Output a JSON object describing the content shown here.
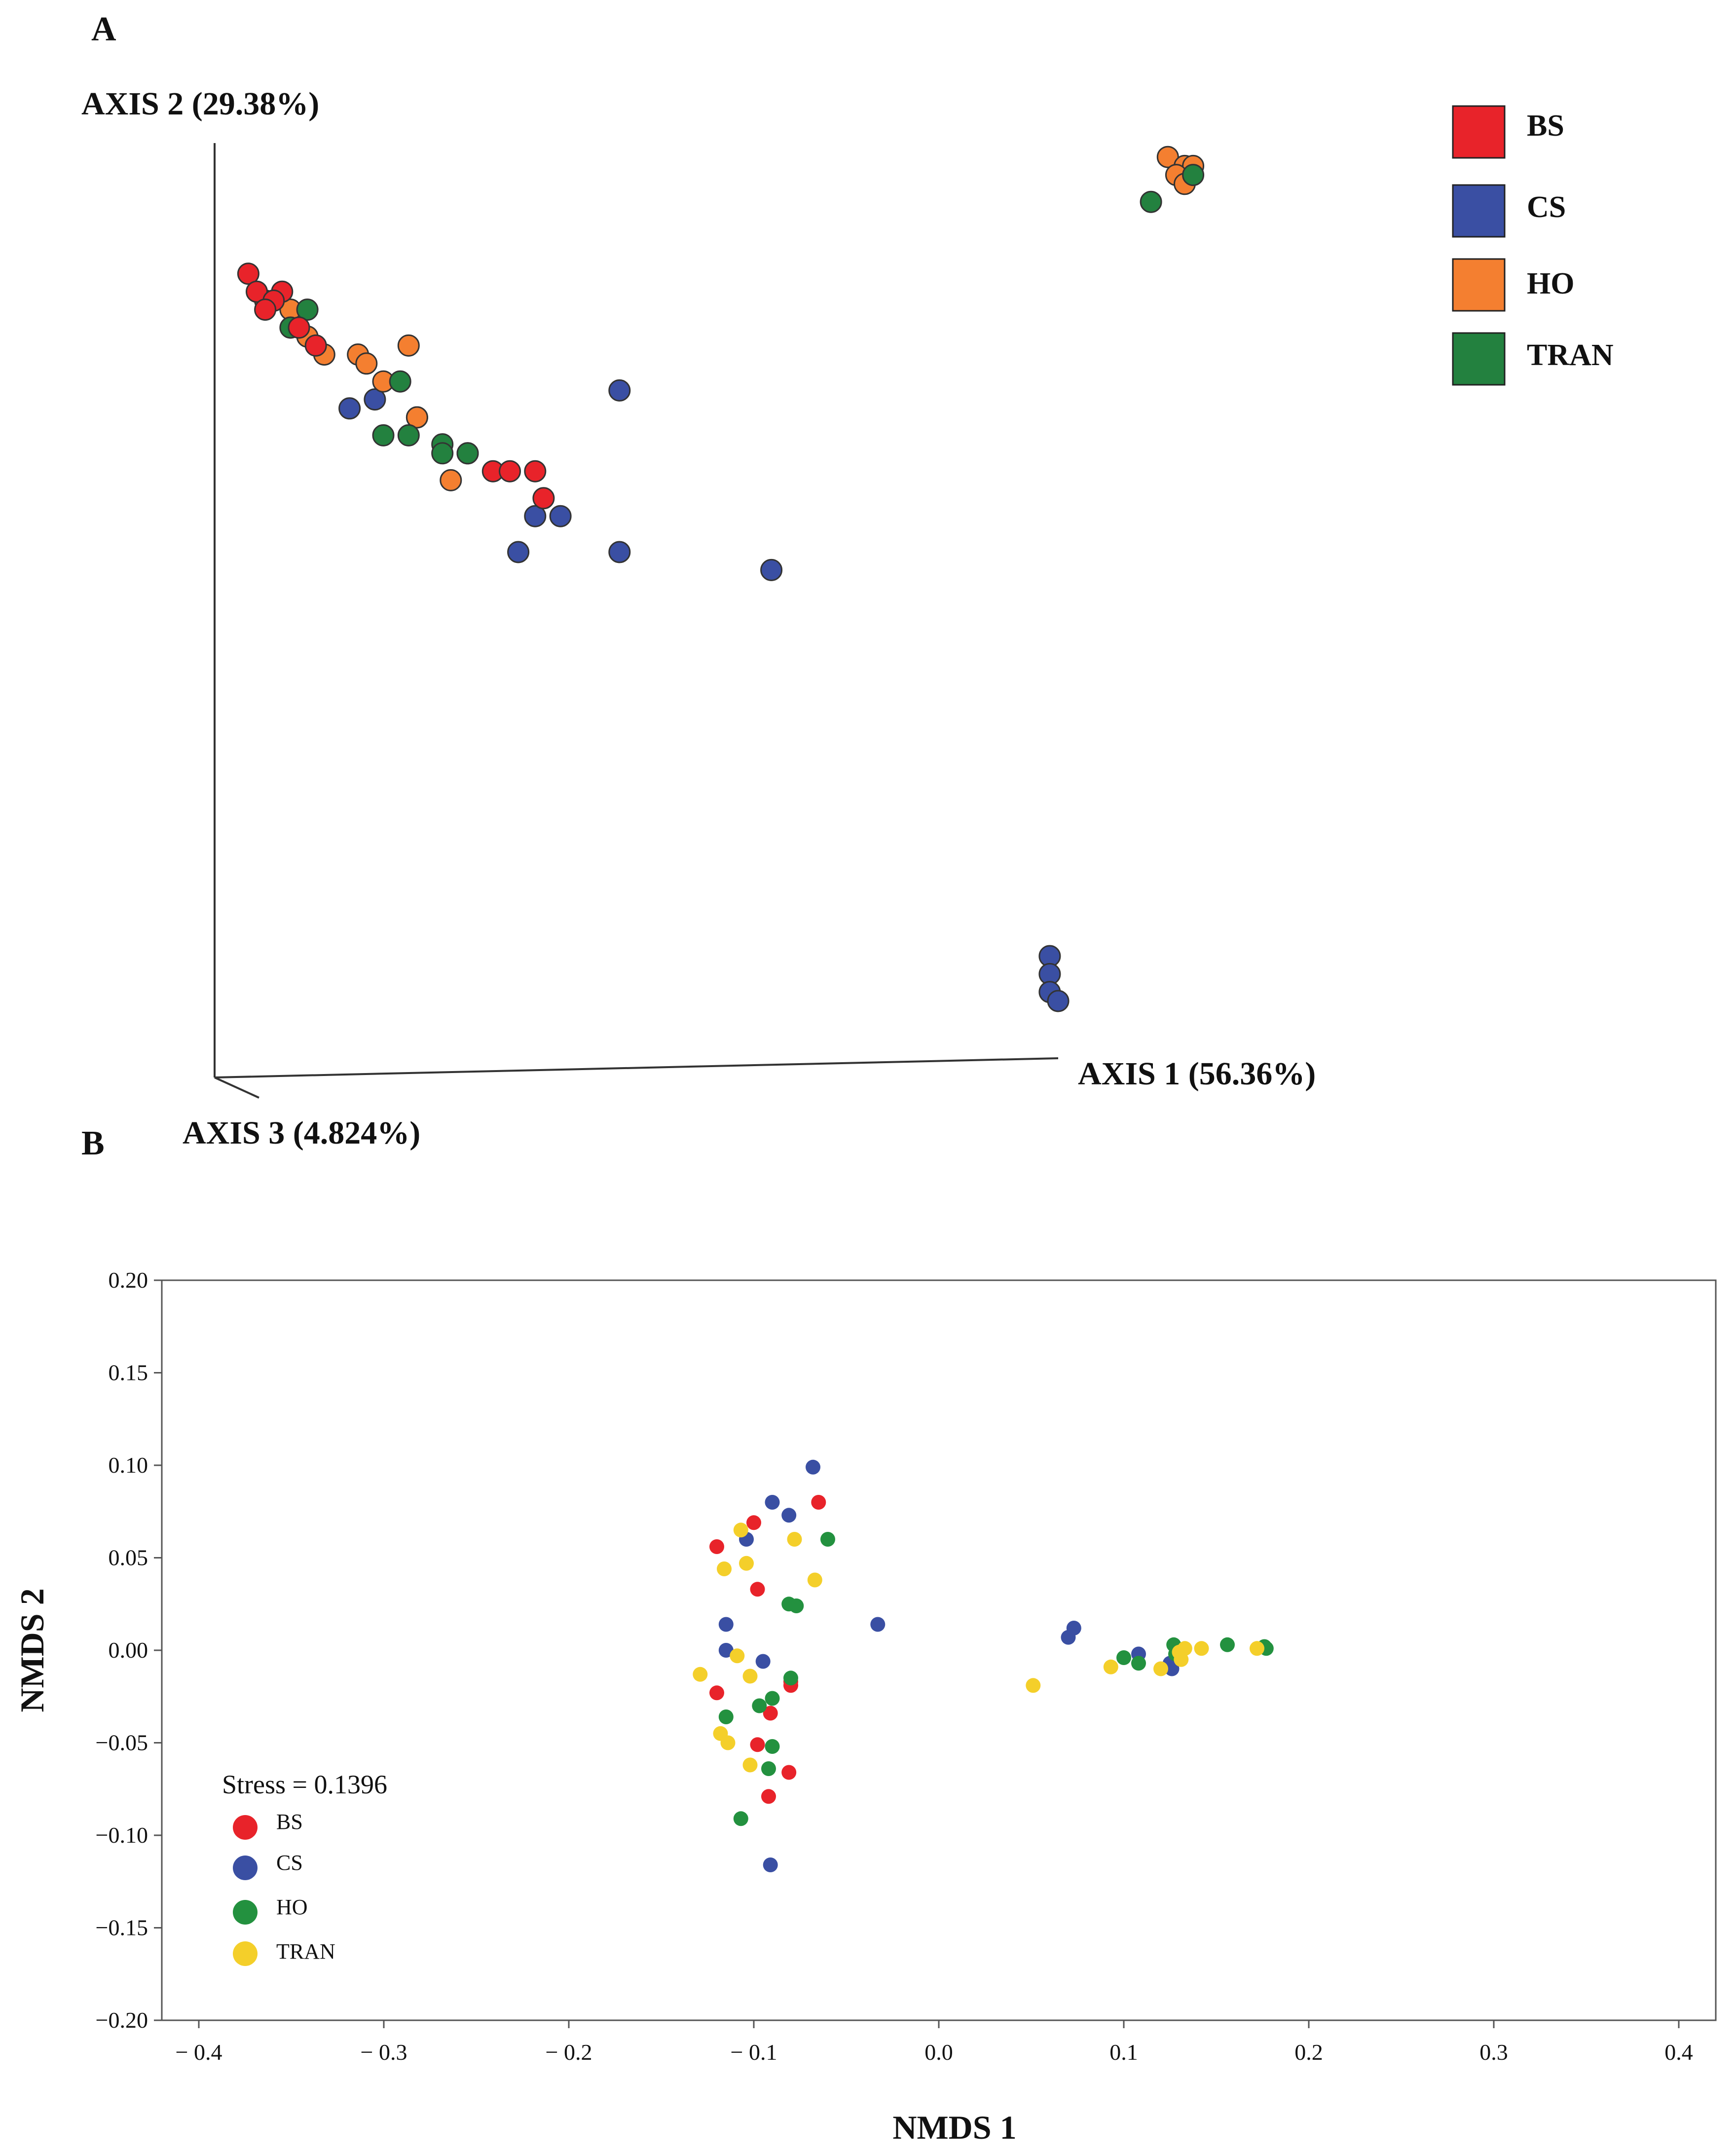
{
  "panel_a": {
    "label": "A",
    "legend": [
      {
        "name": "BS",
        "color": "#e8232a"
      },
      {
        "name": "CS",
        "color": "#3a4fa3"
      },
      {
        "name": "HO",
        "color": "#f47f30"
      },
      {
        "name": "TRAN",
        "color": "#23813f"
      }
    ]
  },
  "panel_b": {
    "label": "B",
    "stress_text": "Stress = 0.1396",
    "legend": [
      {
        "name": "BS",
        "color": "#e8232a"
      },
      {
        "name": "CS",
        "color": "#3a4fa3"
      },
      {
        "name": "HO",
        "color": "#23913f"
      },
      {
        "name": "TRAN",
        "color": "#f4cf2a"
      }
    ]
  },
  "chart_data": [
    {
      "type": "scatter",
      "projection": "3d",
      "xlabel": "AXIS 1 (56.36%)",
      "ylabel": "AXIS 2 (29.38%)",
      "zlabel": "AXIS 3 (4.824%)",
      "note": "Projected coordinates as read from the 3D plot, normalized 0 (left/bottom) to 1 (right/top) within the plotted axis frame",
      "series": [
        {
          "name": "BS",
          "points": [
            [
              0.04,
              0.86
            ],
            [
              0.05,
              0.84
            ],
            [
              0.08,
              0.84
            ],
            [
              0.07,
              0.83
            ],
            [
              0.06,
              0.82
            ],
            [
              0.1,
              0.8
            ],
            [
              0.12,
              0.78
            ],
            [
              0.33,
              0.64
            ],
            [
              0.35,
              0.64
            ],
            [
              0.38,
              0.64
            ],
            [
              0.39,
              0.61
            ]
          ]
        },
        {
          "name": "CS",
          "points": [
            [
              0.48,
              0.73
            ],
            [
              0.16,
              0.71
            ],
            [
              0.19,
              0.72
            ],
            [
              0.24,
              0.7
            ],
            [
              0.3,
              0.66
            ],
            [
              0.38,
              0.59
            ],
            [
              0.41,
              0.59
            ],
            [
              0.36,
              0.55
            ],
            [
              0.48,
              0.55
            ],
            [
              0.66,
              0.53
            ],
            [
              0.99,
              0.1
            ],
            [
              0.99,
              0.08
            ],
            [
              0.99,
              0.06
            ],
            [
              1.0,
              0.05
            ]
          ]
        },
        {
          "name": "HO",
          "points": [
            [
              0.06,
              0.83
            ],
            [
              0.09,
              0.82
            ],
            [
              0.11,
              0.79
            ],
            [
              0.13,
              0.77
            ],
            [
              0.17,
              0.77
            ],
            [
              0.18,
              0.76
            ],
            [
              0.23,
              0.78
            ],
            [
              0.2,
              0.74
            ],
            [
              0.24,
              0.7
            ],
            [
              0.28,
              0.63
            ],
            [
              1.13,
              0.99
            ],
            [
              1.15,
              0.98
            ],
            [
              1.16,
              0.98
            ],
            [
              1.14,
              0.97
            ],
            [
              1.15,
              0.96
            ]
          ]
        },
        {
          "name": "TRAN",
          "points": [
            [
              0.07,
              0.83
            ],
            [
              0.09,
              0.8
            ],
            [
              0.11,
              0.82
            ],
            [
              0.22,
              0.74
            ],
            [
              0.2,
              0.68
            ],
            [
              0.23,
              0.68
            ],
            [
              0.27,
              0.67
            ],
            [
              0.27,
              0.66
            ],
            [
              0.3,
              0.66
            ],
            [
              1.16,
              0.97
            ],
            [
              1.11,
              0.94
            ]
          ]
        }
      ]
    },
    {
      "type": "scatter",
      "xlabel": "NMDS 1",
      "ylabel": "NMDS 2",
      "xlim": [
        -0.42,
        0.42
      ],
      "ylim": [
        -0.2,
        0.2
      ],
      "xticks": [
        "− 0.4",
        "− 0.3",
        "− 0.2",
        "− 0.1",
        "0.0",
        "0.1",
        "0.2",
        "0.3",
        "0.4"
      ],
      "xtick_values": [
        -0.4,
        -0.3,
        -0.2,
        -0.1,
        0.0,
        0.1,
        0.2,
        0.3,
        0.4
      ],
      "yticks": [
        "0.20",
        "0.15",
        "0.10",
        "0.05",
        "0.00",
        "−0.05",
        "−0.10",
        "−0.15",
        "−0.20"
      ],
      "ytick_values": [
        0.2,
        0.15,
        0.1,
        0.05,
        0.0,
        -0.05,
        -0.1,
        -0.15,
        -0.2
      ],
      "annotation": "Stress = 0.1396",
      "legend_position": "bottom-left",
      "series": [
        {
          "name": "BS",
          "color": "#e8232a",
          "points": [
            [
              -0.065,
              0.08
            ],
            [
              -0.1,
              0.069
            ],
            [
              -0.12,
              0.056
            ],
            [
              -0.098,
              0.033
            ],
            [
              -0.08,
              -0.019
            ],
            [
              -0.12,
              -0.023
            ],
            [
              -0.091,
              -0.034
            ],
            [
              -0.098,
              -0.051
            ],
            [
              -0.081,
              -0.066
            ],
            [
              -0.092,
              -0.079
            ],
            [
              -0.08,
              -0.017
            ]
          ]
        },
        {
          "name": "CS",
          "color": "#3a4fa3",
          "points": [
            [
              -0.068,
              0.099
            ],
            [
              -0.09,
              0.08
            ],
            [
              -0.081,
              0.073
            ],
            [
              -0.104,
              0.06
            ],
            [
              -0.115,
              0.014
            ],
            [
              -0.115,
              0.0
            ],
            [
              -0.095,
              -0.006
            ],
            [
              -0.033,
              0.014
            ],
            [
              -0.091,
              -0.116
            ],
            [
              0.073,
              0.012
            ],
            [
              0.07,
              0.007
            ],
            [
              0.108,
              -0.002
            ],
            [
              0.126,
              -0.01
            ],
            [
              0.125,
              -0.007
            ]
          ]
        },
        {
          "name": "HO",
          "color": "#23913f",
          "points": [
            [
              -0.06,
              0.06
            ],
            [
              -0.081,
              0.025
            ],
            [
              -0.077,
              0.024
            ],
            [
              -0.08,
              -0.015
            ],
            [
              -0.09,
              -0.026
            ],
            [
              -0.097,
              -0.03
            ],
            [
              -0.115,
              -0.036
            ],
            [
              -0.09,
              -0.052
            ],
            [
              -0.092,
              -0.064
            ],
            [
              -0.107,
              -0.091
            ],
            [
              0.1,
              -0.004
            ],
            [
              0.108,
              -0.007
            ],
            [
              0.127,
              0.003
            ],
            [
              0.156,
              0.003
            ],
            [
              0.176,
              0.002
            ],
            [
              0.177,
              0.001
            ],
            [
              0.128,
              -0.002
            ]
          ]
        },
        {
          "name": "TRAN",
          "color": "#f4cf2a",
          "points": [
            [
              -0.107,
              0.065
            ],
            [
              -0.078,
              0.06
            ],
            [
              -0.104,
              0.047
            ],
            [
              -0.116,
              0.044
            ],
            [
              -0.067,
              0.038
            ],
            [
              -0.109,
              -0.003
            ],
            [
              -0.129,
              -0.013
            ],
            [
              -0.102,
              -0.014
            ],
            [
              -0.118,
              -0.045
            ],
            [
              -0.114,
              -0.05
            ],
            [
              -0.102,
              -0.062
            ],
            [
              0.051,
              -0.019
            ],
            [
              0.093,
              -0.009
            ],
            [
              0.12,
              -0.01
            ],
            [
              0.13,
              -0.001
            ],
            [
              0.133,
              0.001
            ],
            [
              0.131,
              -0.005
            ],
            [
              0.142,
              0.001
            ],
            [
              0.172,
              0.001
            ]
          ]
        }
      ]
    }
  ]
}
